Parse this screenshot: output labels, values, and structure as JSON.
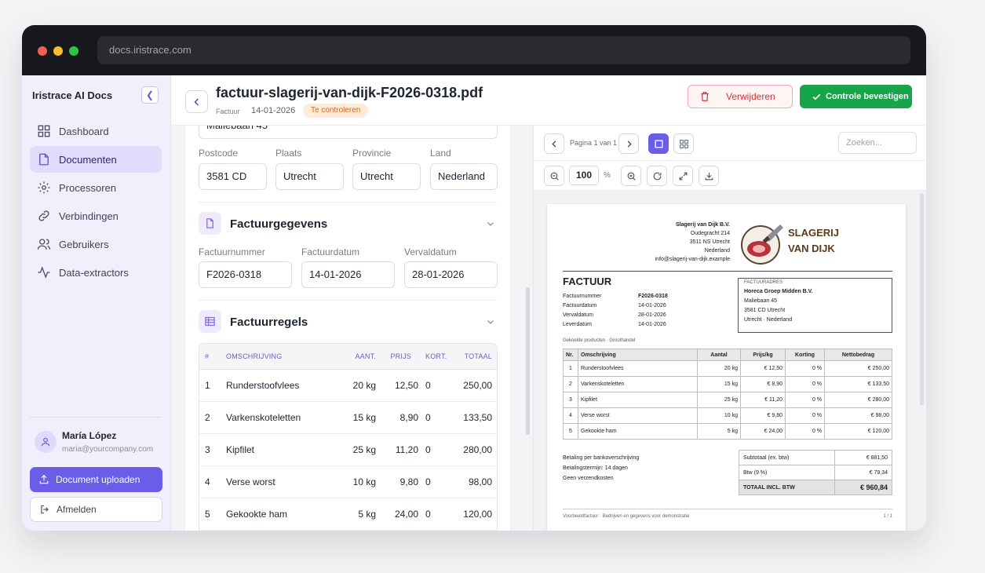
{
  "browser": {
    "url": "docs.iristrace.com"
  },
  "sidebar": {
    "brand": "Iristrace AI Docs",
    "collapse_icon": "chevron-left-icon",
    "items": [
      {
        "label": "Dashboard",
        "icon": "grid-icon",
        "active": false
      },
      {
        "label": "Documenten",
        "icon": "file-icon",
        "active": true
      },
      {
        "label": "Processoren",
        "icon": "gear-icon",
        "active": false
      },
      {
        "label": "Verbindingen",
        "icon": "link-icon",
        "active": false
      },
      {
        "label": "Gebruikers",
        "icon": "users-icon",
        "active": false
      },
      {
        "label": "Data-extractors",
        "icon": "activity-icon",
        "active": false
      }
    ],
    "user": {
      "name": "María López",
      "email": "maria@yourcompany.com"
    },
    "upload_label": "Document uploaden",
    "logout_label": "Afmelden"
  },
  "header": {
    "title": "factuur-slagerij-van-dijk-F2026-0318.pdf",
    "type": "Factuur",
    "date": "14-01-2026",
    "status": "Te controleren",
    "delete_label": "Verwijderen",
    "confirm_label": "Controle bevestigen"
  },
  "form": {
    "street_partial": "Maliebaan 45",
    "address": {
      "labels": {
        "postcode": "Postcode",
        "city": "Plaats",
        "province": "Provincie",
        "country": "Land"
      },
      "values": {
        "postcode": "3581 CD",
        "city": "Utrecht",
        "province": "Utrecht",
        "country": "Nederland"
      }
    },
    "invoice_section": {
      "title": "Factuurgegevens",
      "labels": {
        "number": "Factuurnummer",
        "date": "Factuurdatum",
        "due": "Vervaldatum"
      },
      "values": {
        "number": "F2026-0318",
        "date": "14-01-2026",
        "due": "28-01-2026"
      }
    },
    "lines_section": {
      "title": "Factuurregels",
      "columns": [
        "#",
        "OMSCHRIJVING",
        "AANT.",
        "PRIJS",
        "KORT.",
        "TOTAAL"
      ],
      "rows": [
        [
          "1",
          "Runderstoofvlees",
          "20 kg",
          "12,50",
          "0",
          "250,00"
        ],
        [
          "2",
          "Varkenskoteletten",
          "15 kg",
          "8,90",
          "0",
          "133,50"
        ],
        [
          "3",
          "Kipfilet",
          "25 kg",
          "11,20",
          "0",
          "280,00"
        ],
        [
          "4",
          "Verse worst",
          "10 kg",
          "9,80",
          "0",
          "98,00"
        ],
        [
          "5",
          "Gekookte ham",
          "5 kg",
          "24,00",
          "0",
          "120,00"
        ]
      ]
    }
  },
  "viewer": {
    "page_info": "Pagina 1 van 1",
    "search_placeholder": "Zoeken...",
    "zoom": "100",
    "zoom_unit": "%"
  },
  "document": {
    "seller": {
      "name": "Slagerij van Dijk B.V.",
      "street": "Oudegracht 214",
      "city": "3511 NS Utrecht",
      "country": "Nederland",
      "email": "info@slagerij-van-dijk.example"
    },
    "logo_text": [
      "SLAGERIJ",
      "VAN DIJK"
    ],
    "title": "FACTUUR",
    "meta": [
      {
        "label": "Factuurnummer",
        "value": "F2026-0318"
      },
      {
        "label": "Factuurdatum",
        "value": "14-01-2026"
      },
      {
        "label": "Vervaldatum",
        "value": "28-01-2026"
      },
      {
        "label": "Leverdatum",
        "value": "14-01-2026"
      }
    ],
    "bill_to": {
      "heading": "FACTUURADRES",
      "name": "Horeca Groep Midden B.V.",
      "street": "Maliebaan 45",
      "city": "3581 CD Utrecht",
      "country": "Utrecht · Nederland"
    },
    "subtitle": "Gekoelde producten · Groothandel",
    "columns": [
      "Nr.",
      "Omschrijving",
      "Aantal",
      "Prijs/kg",
      "Korting",
      "Nettobedrag"
    ],
    "rows": [
      [
        "1",
        "Runderstoofvlees",
        "20 kg",
        "€ 12,50",
        "0 %",
        "€ 250,00"
      ],
      [
        "2",
        "Varkenskoteletten",
        "15 kg",
        "€ 8,90",
        "0 %",
        "€ 133,50"
      ],
      [
        "3",
        "Kipfilet",
        "25 kg",
        "€ 11,20",
        "0 %",
        "€ 280,00"
      ],
      [
        "4",
        "Verse worst",
        "10 kg",
        "€ 9,80",
        "0 %",
        "€ 98,00"
      ],
      [
        "5",
        "Gekookte ham",
        "5 kg",
        "€ 24,00",
        "0 %",
        "€ 120,00"
      ]
    ],
    "payment": [
      "Betaling per bankoverschrijving",
      "Betalingstermijn: 14 dagen",
      "Geen verzendkosten"
    ],
    "totals": [
      {
        "label": "Subtotaal (ex. btw)",
        "value": "€ 881,50"
      },
      {
        "label": "Btw (9 %)",
        "value": "€ 79,34"
      },
      {
        "label": "TOTAAL INCL. BTW",
        "value": "€ 960,84"
      }
    ],
    "footer": "Voorbeeldfactuur · Bedrijven en gegevens voor demonstratie",
    "page": "1 / 1"
  },
  "colors": {
    "accent": "#6a5ee8",
    "confirm": "#17a54a",
    "danger": "#d2333c",
    "sidebar_bg": "#f2effd",
    "status_badge": "#d06a1e"
  }
}
